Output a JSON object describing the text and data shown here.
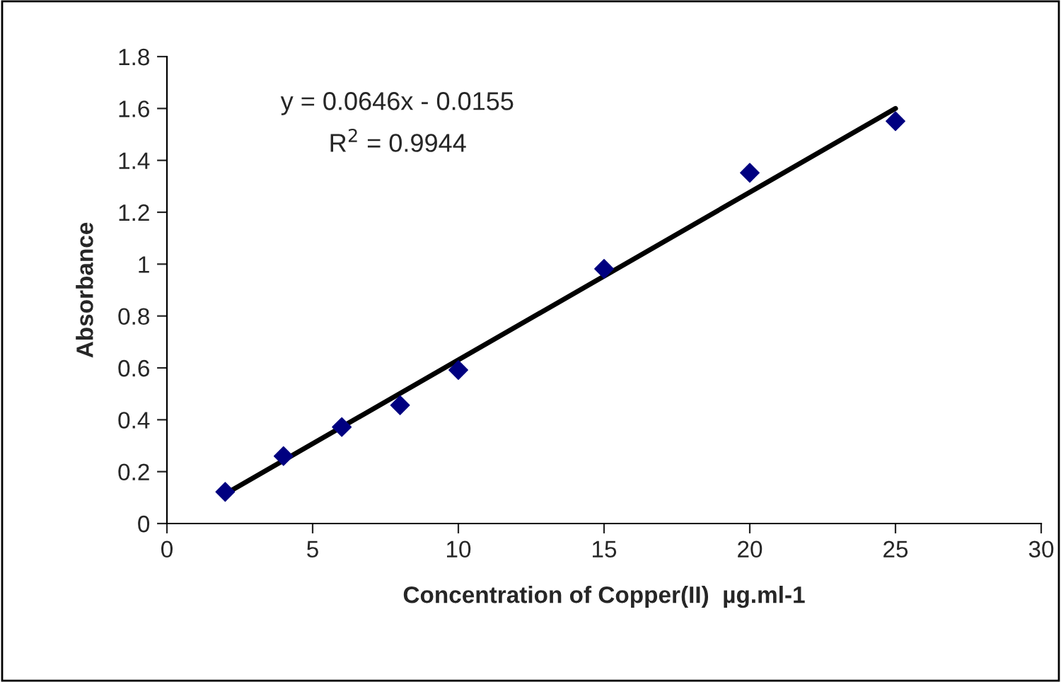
{
  "chart_data": {
    "type": "scatter",
    "xlabel": "Concentration of Copper(II)  µg.ml-1",
    "ylabel": "Absorbance",
    "x": [
      2,
      4,
      6,
      8,
      10,
      15,
      20,
      25
    ],
    "series": [
      {
        "color": "#000080",
        "marker": "diamond",
        "values": [
          0.122,
          0.26,
          0.372,
          0.456,
          0.592,
          0.982,
          1.352,
          1.551
        ]
      },
      {
        "type": "line",
        "color": "#000000",
        "x": [
          2,
          25
        ],
        "values": [
          0.114,
          1.6
        ],
        "line_style": "solid"
      }
    ],
    "annotations": [
      "y = 0.0646x - 0.0155",
      "R$^{2}$ = 0.9944"
    ],
    "xlim": [
      0,
      30
    ],
    "xticks": [
      0,
      5,
      10,
      15,
      20,
      25,
      30
    ],
    "ylim": [
      0,
      1.8
    ],
    "yticks": [
      0,
      0.2,
      0.4,
      0.6,
      0.8,
      1,
      1.2,
      1.4,
      1.6,
      1.8
    ],
    "grid": false,
    "legend": false
  }
}
